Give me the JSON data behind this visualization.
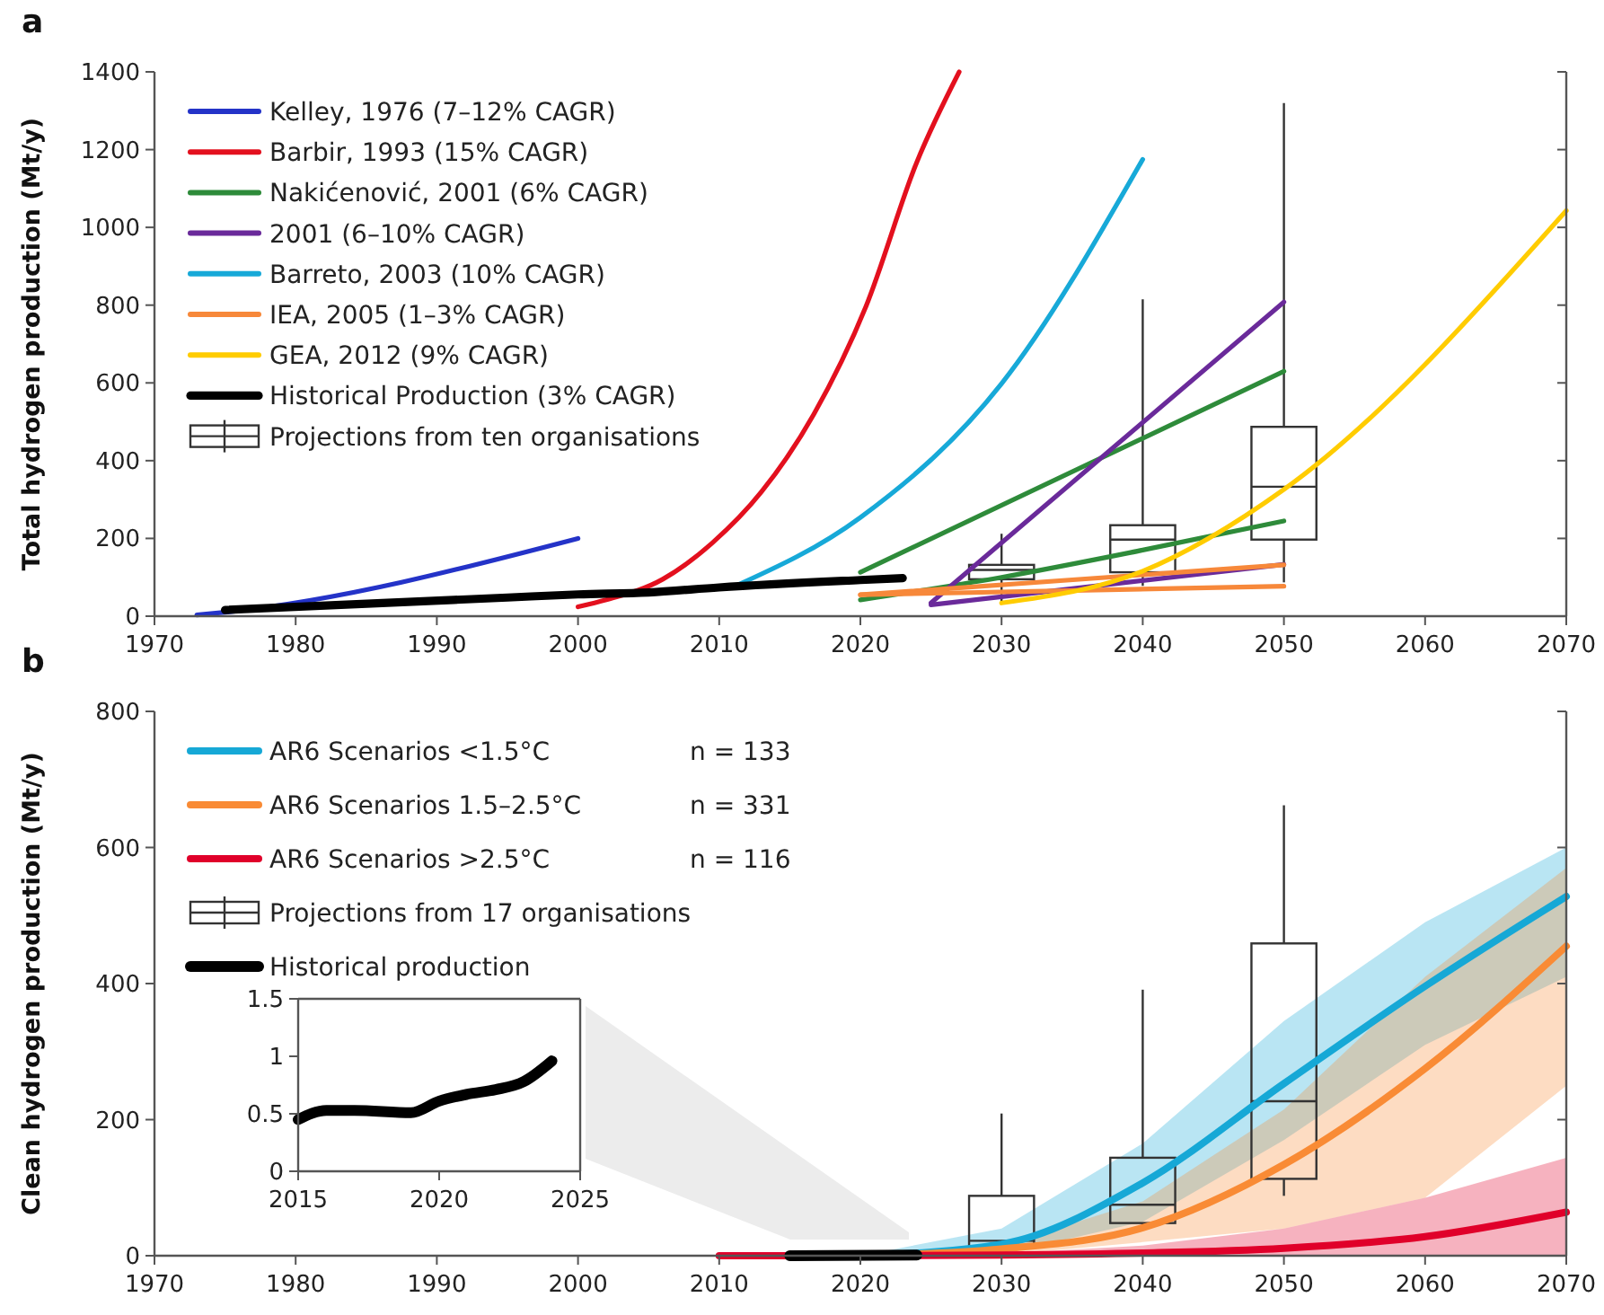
{
  "chart_data": [
    {
      "type": "line",
      "title": "a",
      "ylabel": "Total hydrogen production (Mt/y)",
      "xlim": [
        1970,
        2070
      ],
      "xticks": [
        1970,
        1980,
        1990,
        2000,
        2010,
        2020,
        2030,
        2040,
        2050,
        2060,
        2070
      ],
      "ylim": [
        0,
        1400
      ],
      "yticks": [
        0,
        200,
        400,
        600,
        800,
        1000,
        1200,
        1400
      ],
      "legend": "top left",
      "grid": false,
      "series": [
        {
          "name": "Kelley, 1976 (7–12% CAGR)",
          "color": "#2433c8",
          "x": [
            1973,
            1975,
            2000
          ],
          "values": [
            3,
            10,
            200
          ]
        },
        {
          "name": "Barbir, 1993 (15% CAGR)",
          "color": "#e3101e",
          "x": [
            2000,
            2002,
            2006,
            2009.5,
            2013,
            2016.7,
            2020.4,
            2024,
            2027
          ],
          "values": [
            24,
            42,
            95,
            188,
            320,
            519,
            797,
            1168,
            1400
          ]
        },
        {
          "name": "Nakićenović, 2001 (6% CAGR)",
          "color": "#2e8b3a",
          "x": [
            2020,
            2050
          ],
          "values": [
            113,
            630
          ]
        },
        {
          "color": "#2e8b3a",
          "x": [
            2020,
            2030,
            2040,
            2050
          ],
          "values": [
            42,
            100,
            170,
            245
          ]
        },
        {
          "name": "2001 (6–10% CAGR)",
          "color": "#6a2a9a",
          "x": [
            2025,
            2050
          ],
          "values": [
            34,
            808
          ]
        },
        {
          "color": "#6a2a9a",
          "x": [
            2025,
            2050
          ],
          "values": [
            29,
            133
          ]
        },
        {
          "name": "Barreto, 2003 (10% CAGR)",
          "color": "#17a9d8",
          "x": [
            2011,
            2020,
            2030,
            2040
          ],
          "values": [
            75,
            254,
            598,
            1175
          ]
        },
        {
          "name": "IEA, 2005 (1–3% CAGR)",
          "color": "#f7883a",
          "x": [
            2020,
            2050
          ],
          "values": [
            55,
            132
          ]
        },
        {
          "color": "#f7883a",
          "x": [
            2020,
            2050
          ],
          "values": [
            55,
            77
          ]
        },
        {
          "name": "GEA, 2012 (9% CAGR)",
          "color": "#ffcc00",
          "x": [
            2030,
            2040,
            2050,
            2070
          ],
          "values": [
            34,
            116,
            326,
            1043
          ]
        },
        {
          "name": "Historical Production (3% CAGR)",
          "color": "#000000",
          "x": [
            1975,
            1995,
            2000,
            2005,
            2010,
            2020,
            2023
          ],
          "values": [
            16,
            48,
            56,
            61,
            74,
            93,
            98
          ]
        },
        {
          "name": "Projections from ten organisations",
          "type": "box",
          "color": "#333333",
          "x": [
            2030,
            2040,
            2050
          ],
          "boxes": [
            {
              "low": 34,
              "q1": 95,
              "median": 119,
              "q3": 132,
              "high": 212
            },
            {
              "low": 78,
              "q1": 113,
              "median": 197,
              "q3": 234,
              "high": 815
            },
            {
              "low": 87,
              "q1": 197,
              "median": 333,
              "q3": 487,
              "high": 1320
            }
          ]
        }
      ]
    },
    {
      "type": "line",
      "title": "b",
      "ylabel": "Clean hydrogen production (Mt/y)",
      "xlim": [
        1970,
        2070
      ],
      "xticks": [
        1970,
        1980,
        1990,
        2000,
        2010,
        2020,
        2030,
        2040,
        2050,
        2060,
        2070
      ],
      "ylim": [
        0,
        800
      ],
      "yticks": [
        0,
        200,
        400,
        600,
        800
      ],
      "legend": "top left",
      "grid": false,
      "annotations": [
        "n = 133",
        "n = 331",
        "n = 116"
      ],
      "series": [
        {
          "name": "AR6 Scenarios <1.5°C",
          "color": "#16a8d6",
          "x": [
            2020,
            2030,
            2040,
            2050,
            2060,
            2070
          ],
          "values": [
            0,
            17,
            107,
            253,
            396,
            528
          ],
          "lower": [
            0,
            2,
            50,
            170,
            310,
            410
          ],
          "upper": [
            0,
            40,
            165,
            345,
            490,
            600
          ]
        },
        {
          "name": "AR6 Scenarios 1.5–2.5°C",
          "color": "#f98b35",
          "x": [
            2020,
            2030,
            2040,
            2050,
            2060,
            2070
          ],
          "values": [
            0,
            10,
            41,
            134,
            275,
            455
          ],
          "lower": [
            0,
            1,
            20,
            40,
            85,
            250
          ],
          "upper": [
            0,
            15,
            80,
            215,
            410,
            570
          ]
        },
        {
          "name": "AR6 Scenarios >2.5°C",
          "color": "#e0002a",
          "x": [
            2010,
            2020,
            2030,
            2040,
            2050,
            2060,
            2070
          ],
          "values": [
            0,
            0,
            1,
            4,
            11,
            28,
            64
          ],
          "lower": [
            0,
            0,
            0,
            0,
            0,
            0,
            0
          ],
          "upper": [
            0,
            0,
            3,
            15,
            40,
            85,
            144
          ]
        },
        {
          "name": "Projections from 17 organisations",
          "type": "box",
          "color": "#333333",
          "x": [
            2030,
            2040,
            2050
          ],
          "boxes": [
            {
              "low": 6,
              "q1": 11,
              "median": 22,
              "q3": 88,
              "high": 209
            },
            {
              "low": 37,
              "q1": 48,
              "median": 75,
              "q3": 144,
              "high": 391
            },
            {
              "low": 88,
              "q1": 113,
              "median": 227,
              "q3": 459,
              "high": 662
            }
          ]
        },
        {
          "name": "Historical production",
          "color": "#000000",
          "x": [
            2015,
            2024
          ],
          "values": [
            0,
            1
          ]
        }
      ]
    },
    {
      "type": "line",
      "xlim": [
        2015,
        2025
      ],
      "xticks": [
        2015,
        2020,
        2025
      ],
      "ylim": [
        0,
        1.5
      ],
      "yticks": [
        0,
        0.5,
        1,
        1.5
      ],
      "grid": false,
      "series": [
        {
          "color": "#000000",
          "x": [
            2015,
            2016,
            2017,
            2019,
            2020,
            2021,
            2022,
            2023,
            2024
          ],
          "values": [
            0.45,
            0.53,
            0.53,
            0.51,
            0.61,
            0.67,
            0.71,
            0.78,
            0.96
          ]
        }
      ]
    }
  ]
}
